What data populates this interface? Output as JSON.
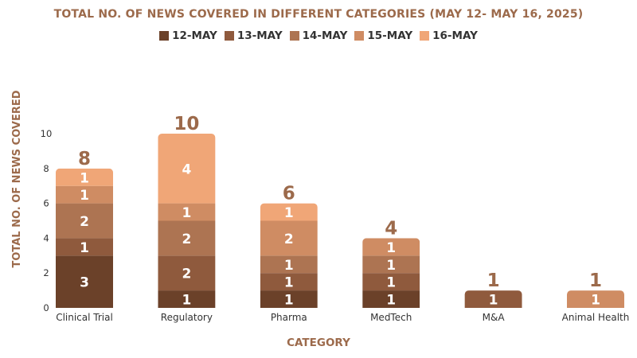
{
  "chart_data": {
    "type": "bar",
    "stacked": true,
    "title": "TOTAL NO. OF NEWS COVERED IN DIFFERENT CATEGORIES (MAY 12- MAY 16, 2025)",
    "xlabel": "CATEGORY",
    "ylabel": "TOTAL  NO. OF NEWS COVERED",
    "ylim": [
      0,
      10
    ],
    "yticks": [
      0,
      2,
      4,
      6,
      8,
      10
    ],
    "grid": false,
    "legend_position": "top",
    "categories": [
      "Clinical Trial",
      "Regulatory",
      "Pharma",
      "MedTech",
      "M&A",
      "Animal Health"
    ],
    "series": [
      {
        "name": "12-MAY",
        "color": "#6b4129",
        "values": [
          3,
          1,
          1,
          1,
          0,
          0
        ]
      },
      {
        "name": "13-MAY",
        "color": "#8f5a3d",
        "values": [
          1,
          2,
          1,
          1,
          1,
          0
        ]
      },
      {
        "name": "14-MAY",
        "color": "#ad7452",
        "values": [
          2,
          2,
          1,
          1,
          0,
          0
        ]
      },
      {
        "name": "15-MAY",
        "color": "#cf8c63",
        "values": [
          1,
          1,
          2,
          1,
          0,
          1
        ]
      },
      {
        "name": "16-MAY",
        "color": "#f0a677",
        "values": [
          1,
          4,
          1,
          0,
          0,
          0
        ]
      }
    ],
    "totals": [
      8,
      10,
      6,
      4,
      1,
      1
    ],
    "label_color": "#ffffff",
    "total_label_color": "#9c6a4b",
    "axis_text_color": "#333333",
    "axis_title_color": "#9c6a4b"
  }
}
